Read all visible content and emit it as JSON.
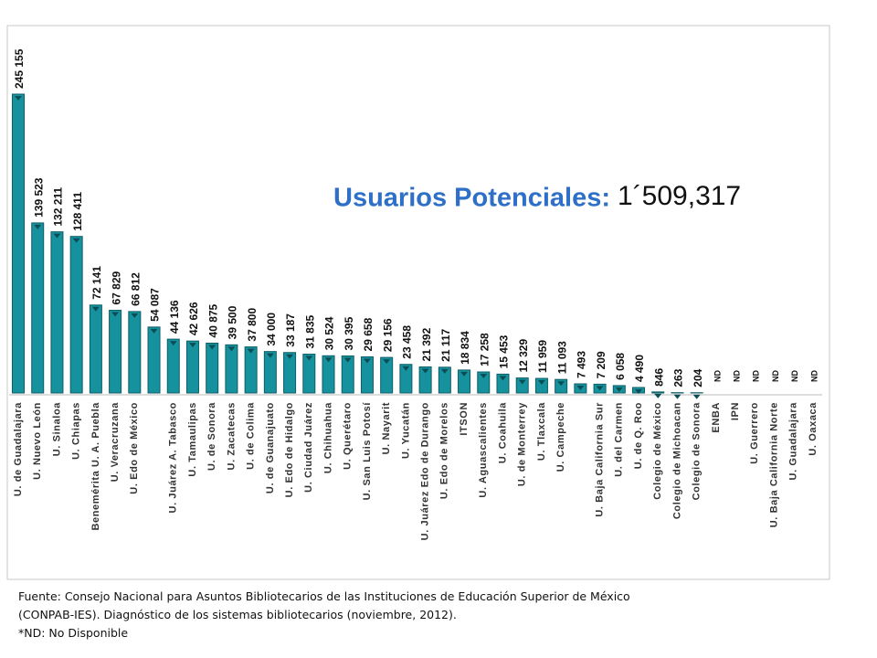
{
  "chart_data": {
    "type": "bar",
    "title": "Usuarios Potenciales:",
    "annotation": "1´509,317",
    "color": "#16929e",
    "categories": [
      "U. de Guadalajara",
      "U. Nuevo León",
      "U. Sinaloa",
      "U. Chiapas",
      "Benemérita U. A. Puebla",
      "U. Veracruzana",
      "U. Edo de México",
      null,
      "U. Juárez A. Tabasco",
      "U. Tamaulipas",
      "U. de Sonora",
      "U. Zacatecas",
      "U. de Colima",
      "U. de Guanajuato",
      "U. Edo de Hidalgo",
      "U. Ciudad Juárez",
      "U. Chihuahua",
      "U. Querétaro",
      "U. San Luis Potosí",
      "U. Nayarit",
      "U. Yucatán",
      "U. Juárez Edo de Durango",
      "U. Edo de Morelos",
      "ITSON",
      "U. Aguascalientes",
      "U. Coahuila",
      "U. de Monterrey",
      "U. Tlaxcala",
      "U. Campeche",
      null,
      "U. Baja California Sur",
      "U. del Carmen",
      "U. de Q. Roo",
      "Colegio de México",
      "Colegio de Michoacan",
      "Colegio de Sonora",
      "ENBA",
      "IPN",
      "U. Guerrero",
      "U. Baja California Norte",
      "U. Guadalajara",
      "U. Oaxaca"
    ],
    "values": [
      245155,
      139523,
      132211,
      128411,
      72141,
      67829,
      66812,
      54087,
      44136,
      42626,
      40875,
      39500,
      37800,
      34000,
      33187,
      31835,
      30524,
      30395,
      29658,
      29156,
      23458,
      21392,
      21117,
      18834,
      17258,
      15453,
      12329,
      11959,
      11093,
      7493,
      7209,
      6058,
      4490,
      846,
      263,
      204,
      null,
      null,
      null,
      null,
      null,
      null
    ],
    "value_labels": [
      "245 155",
      "139 523",
      "132 211",
      "128 411",
      "72 141",
      "67 829",
      "66 812",
      "54 087",
      "44 136",
      "42 626",
      "40 875",
      "39 500",
      "37 800",
      "34 000",
      "33 187",
      "31 835",
      "30 524",
      "30 395",
      "29 658",
      "29 156",
      "23 458",
      "21 392",
      "21 117",
      "18 834",
      "17 258",
      "15 453",
      "12 329",
      "11 959",
      "11 093",
      "7 493",
      "7 209",
      "6 058",
      "4 490",
      "846",
      "263",
      "204",
      "ND",
      "ND",
      "ND",
      "ND",
      "ND",
      "ND"
    ],
    "notes": [
      "Fuente: Consejo Nacional para Asuntos Bibliotecarios de las Instituciones de Educación Superior de México",
      "(CONPAB-IES). Diagnóstico de los sistemas bibliotecarios (noviembre, 2012).",
      "*ND: No Disponible"
    ]
  }
}
